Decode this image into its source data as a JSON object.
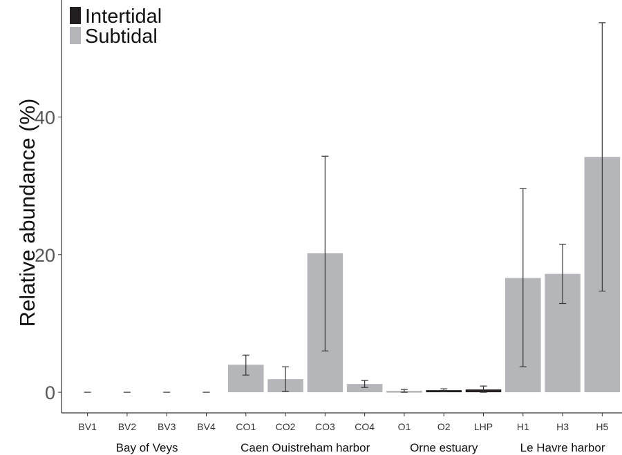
{
  "chart_data": {
    "type": "bar",
    "title": "",
    "xlabel": "",
    "ylabel": "Relative abundance (%)",
    "ylim": [
      -3,
      57
    ],
    "yticks": [
      0,
      20,
      40
    ],
    "grid": false,
    "legend_position": "top-left",
    "colors": {
      "Intertidal": "#231f20",
      "Subtidal": "#b5b6ba"
    },
    "legend": [
      {
        "name": "Intertidal",
        "color": "#231f20"
      },
      {
        "name": "Subtidal",
        "color": "#b5b6ba"
      }
    ],
    "categories": [
      "BV1",
      "BV2",
      "BV3",
      "BV4",
      "CO1",
      "CO2",
      "CO3",
      "CO4",
      "O1",
      "O2",
      "LHP",
      "H1",
      "H3",
      "H5"
    ],
    "zone": [
      "Subtidal",
      "Subtidal",
      "Subtidal",
      "Subtidal",
      "Subtidal",
      "Subtidal",
      "Subtidal",
      "Subtidal",
      "Subtidal",
      "Intertidal",
      "Intertidal",
      "Subtidal",
      "Subtidal",
      "Subtidal"
    ],
    "values": [
      0,
      0,
      0,
      0,
      4.0,
      1.9,
      20.2,
      1.2,
      0.2,
      0.3,
      0.4,
      16.6,
      17.2,
      34.2
    ],
    "error_low": [
      0,
      0,
      0,
      0,
      2.5,
      0.1,
      6.0,
      0.7,
      0.0,
      0.1,
      0.0,
      3.7,
      12.9,
      14.7
    ],
    "error_high": [
      0,
      0,
      0,
      0,
      5.4,
      3.7,
      34.3,
      1.7,
      0.4,
      0.5,
      0.9,
      29.6,
      21.5,
      53.7
    ],
    "groups": [
      {
        "label": "Bay of Veys",
        "members": [
          "BV1",
          "BV2",
          "BV3",
          "BV4"
        ]
      },
      {
        "label": "Caen Ouistreham harbor",
        "members": [
          "CO1",
          "CO2",
          "CO3",
          "CO4"
        ]
      },
      {
        "label": "Orne estuary",
        "members": [
          "O1",
          "O2",
          "LHP"
        ]
      },
      {
        "label": "Le Havre harbor",
        "members": [
          "H1",
          "H3",
          "H5"
        ]
      }
    ]
  }
}
